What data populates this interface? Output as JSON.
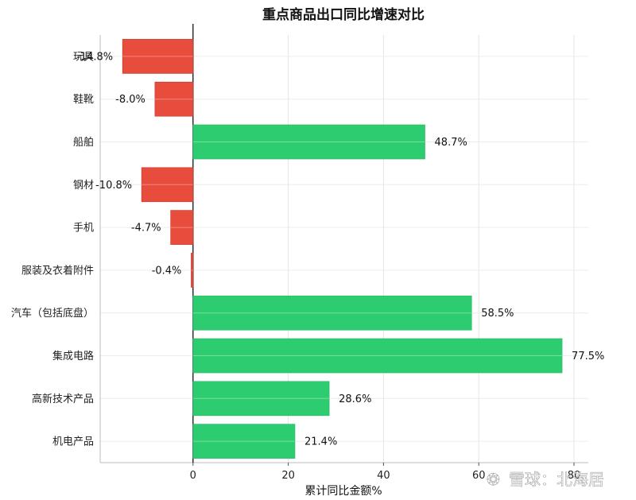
{
  "chart_data": {
    "type": "bar",
    "orientation": "horizontal",
    "title": "重点商品出口同比增速对比",
    "xlabel": "累计同比金额%",
    "ylabel": "",
    "xlim": [
      -19.5,
      83
    ],
    "xticks": [
      0,
      20,
      40,
      60,
      80
    ],
    "grid": true,
    "categories": [
      "玩具",
      "鞋靴",
      "船舶",
      "钢材",
      "手机",
      "服装及衣着附件",
      "汽车（包括底盘）",
      "集成电路",
      "高新技术产品",
      "机电产品"
    ],
    "values": [
      -14.8,
      -8.0,
      48.7,
      -10.8,
      -4.7,
      -0.4,
      58.5,
      77.5,
      28.6,
      21.4
    ],
    "value_labels": [
      "-14.8%",
      "-8.0%",
      "48.7%",
      "-10.8%",
      "-4.7%",
      "-0.4%",
      "58.5%",
      "77.5%",
      "28.6%",
      "21.4%"
    ],
    "colors": {
      "positive": "#2ecc71",
      "negative": "#e74c3c"
    }
  },
  "watermark": {
    "text": "雪球：北海居"
  }
}
